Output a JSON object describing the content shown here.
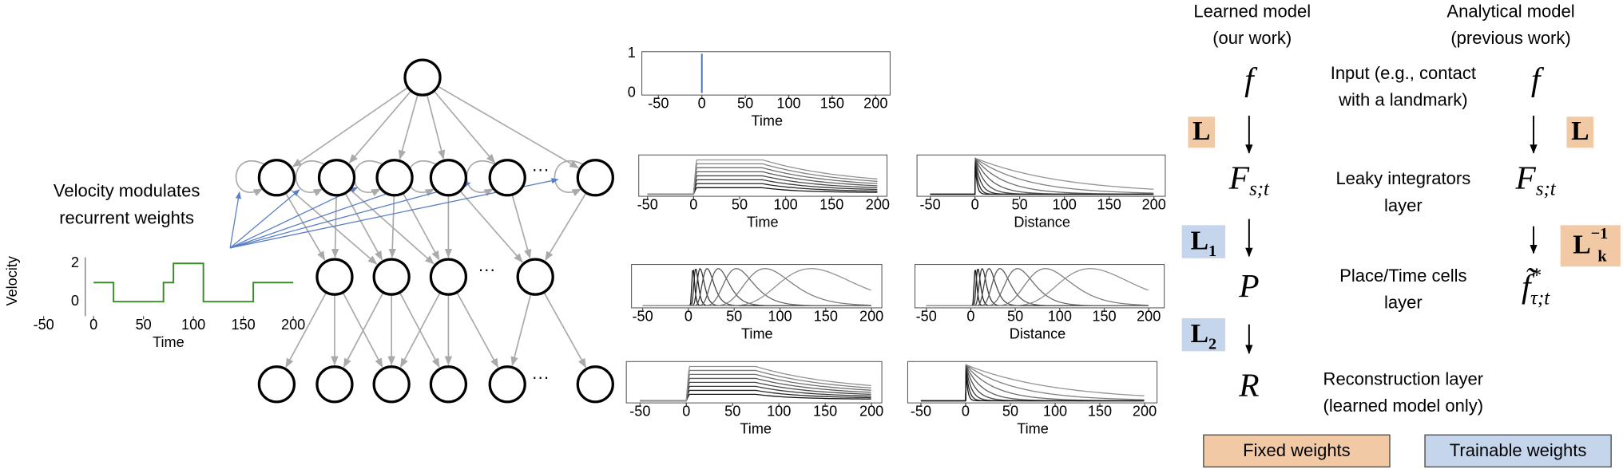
{
  "network": {
    "velocity_note": [
      "Velocity modulates",
      "recurrent weights"
    ],
    "ellipsis": "···"
  },
  "panels": [
    {
      "ylabel": "Velocity",
      "yticks": [
        0,
        2
      ],
      "xticks": [
        -50,
        0,
        50,
        100,
        150,
        200
      ],
      "xlabel": "Time"
    },
    {
      "yticks": [
        0,
        1
      ],
      "xticks": [
        -50,
        0,
        50,
        100,
        150,
        200
      ],
      "xlabel": "Time"
    },
    {
      "xticks": [
        -50,
        0,
        50,
        100,
        150,
        200
      ],
      "xlabel": "Time"
    },
    {
      "xticks": [
        -50,
        0,
        50,
        100,
        150,
        200
      ],
      "xlabel": "Distance"
    },
    {
      "xticks": [
        -50,
        0,
        50,
        100,
        150,
        200
      ],
      "xlabel": "Time"
    },
    {
      "xticks": [
        -50,
        0,
        50,
        100,
        150,
        200
      ],
      "xlabel": "Distance"
    },
    {
      "xticks": [
        -50,
        0,
        50,
        100,
        150,
        200
      ],
      "xlabel": "Time"
    },
    {
      "xticks": [
        -50,
        0,
        50,
        100,
        150,
        200
      ],
      "xlabel": "Time"
    }
  ],
  "models": {
    "learned": {
      "title": [
        "Learned model",
        "(our work)"
      ]
    },
    "analytical": {
      "title": [
        "Analytical model",
        "(previous work)"
      ]
    }
  },
  "layers": {
    "input": {
      "text": [
        "Input (e.g., contact",
        "with a landmark)"
      ],
      "learned": "f",
      "analytical": "f"
    },
    "integrators": {
      "text": [
        "Leaky integrators",
        "layer"
      ],
      "learned": {
        "main": "F",
        "sub": "s;t"
      },
      "analytical": {
        "main": "F",
        "sub": "s;t"
      }
    },
    "place": {
      "text": [
        "Place/Time cells",
        "layer"
      ],
      "learned": "P",
      "analytical": {
        "main": "f̃",
        "sup": "*",
        "sub": "τ;t"
      }
    },
    "reconstruction": {
      "text": [
        "Reconstruction layer",
        "(learned model only)"
      ],
      "learned": "R"
    }
  },
  "operators": {
    "learned": [
      {
        "main": "L"
      },
      {
        "main": "L",
        "sub": "1"
      },
      {
        "main": "L",
        "sub": "2"
      }
    ],
    "analytical": [
      {
        "main": "L"
      },
      {
        "main": "L",
        "sub": "k",
        "sup": "−1"
      }
    ]
  },
  "legend": {
    "fixed": "Fixed weights",
    "trainable": "Trainable weights"
  }
}
